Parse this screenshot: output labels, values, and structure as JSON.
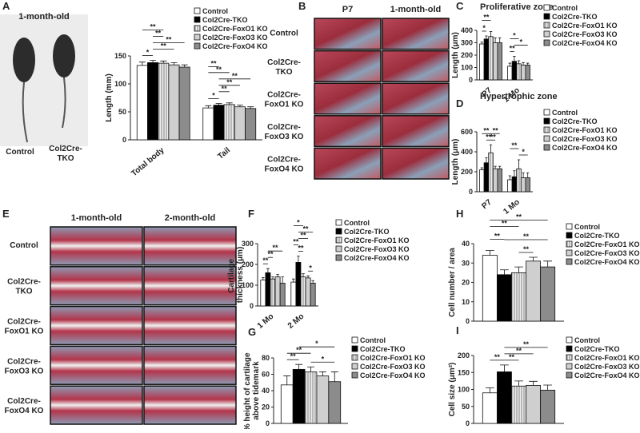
{
  "figure": {
    "photo": {
      "panel": "A",
      "caption": "1-month-old",
      "labels": [
        "Control",
        "Col2Cre-TKO"
      ]
    },
    "histology_b": {
      "panel": "B",
      "columns": [
        "P7",
        "1-month-old"
      ],
      "rows": [
        "Control",
        "Col2Cre-TKO",
        "Col2Cre-FoxO1 KO",
        "Col2Cre-FoxO3 KO",
        "Col2Cre-FoxO4 KO"
      ]
    },
    "histology_e": {
      "panel": "E",
      "columns": [
        "1-month-old",
        "2-month-old"
      ],
      "rows": [
        "Control",
        "Col2Cre-TKO",
        "Col2Cre-FoxO1 KO",
        "Col2Cre-FoxO3 KO",
        "Col2Cre-FoxO4 KO"
      ]
    }
  },
  "chart_data": [
    {
      "type": "bar",
      "y_label": "Length (mm)",
      "categories": [
        "Total body",
        "Tail"
      ],
      "ylim": [
        0,
        150
      ],
      "yticks": [
        0,
        50,
        100,
        150
      ],
      "series": [
        {
          "name": "Control",
          "color": "#ffffff",
          "values": [
            133,
            57
          ],
          "errors": [
            6,
            4
          ]
        },
        {
          "name": "Col2Cre-TKO",
          "color": "#000000",
          "values": [
            138,
            62
          ],
          "errors": [
            4,
            3
          ]
        },
        {
          "name": "Col2Cre-FoxO1 KO",
          "color": "#e6e6e6",
          "hatch": true,
          "values": [
            137,
            63
          ],
          "errors": [
            4,
            3
          ]
        },
        {
          "name": "Col2Cre-FoxO3 KO",
          "color": "#cfcfcf",
          "values": [
            134,
            59
          ],
          "errors": [
            4,
            3
          ]
        },
        {
          "name": "Col2Cre-FoxO4 KO",
          "color": "#8c8c8c",
          "values": [
            130,
            56
          ],
          "errors": [
            4,
            3
          ]
        }
      ],
      "annotations": [
        "*",
        "**",
        "**",
        "**",
        "**",
        "*",
        "**",
        "**",
        "**",
        "**",
        "**"
      ]
    },
    {
      "type": "bar",
      "panel": "C",
      "title": "Proliferative zone",
      "y_label": "Length (μm)",
      "categories": [
        "P7",
        "1 Mo"
      ],
      "ylim": [
        0,
        400
      ],
      "yticks": [
        0,
        100,
        200,
        300,
        400
      ],
      "series": [
        {
          "name": "Control",
          "color": "#ffffff",
          "values": [
            290,
            110
          ],
          "errors": [
            15,
            25
          ]
        },
        {
          "name": "Col2Cre-TKO",
          "color": "#000000",
          "values": [
            330,
            150
          ],
          "errors": [
            25,
            40
          ]
        },
        {
          "name": "Col2Cre-FoxO1 KO",
          "color": "#e6e6e6",
          "hatch": true,
          "values": [
            350,
            130
          ],
          "errors": [
            40,
            25
          ]
        },
        {
          "name": "Col2Cre-FoxO3 KO",
          "color": "#cfcfcf",
          "values": [
            300,
            120
          ],
          "errors": [
            40,
            20
          ]
        },
        {
          "name": "Col2Cre-FoxO4 KO",
          "color": "#8c8c8c",
          "values": [
            300,
            120
          ],
          "errors": [
            40,
            15
          ]
        }
      ],
      "annotations": [
        "**",
        "*",
        "*",
        "**",
        "*"
      ]
    },
    {
      "type": "bar",
      "panel": "D",
      "title": "Hypertrophic zone",
      "y_label": "Length (μm)",
      "categories": [
        "P7",
        "1 Mo"
      ],
      "ylim": [
        0,
        600
      ],
      "yticks": [
        0,
        200,
        400,
        600
      ],
      "series": [
        {
          "name": "Control",
          "color": "#ffffff",
          "values": [
            220,
            120
          ],
          "errors": [
            20,
            40
          ]
        },
        {
          "name": "Col2Cre-TKO",
          "color": "#000000",
          "values": [
            290,
            150
          ],
          "errors": [
            50,
            60
          ]
        },
        {
          "name": "Col2Cre-FoxO1 KO",
          "color": "#e6e6e6",
          "hatch": true,
          "values": [
            390,
            230
          ],
          "errors": [
            80,
            90
          ]
        },
        {
          "name": "Col2Cre-FoxO3 KO",
          "color": "#cfcfcf",
          "values": [
            230,
            140
          ],
          "errors": [
            25,
            50
          ]
        },
        {
          "name": "Col2Cre-FoxO4 KO",
          "color": "#8c8c8c",
          "values": [
            230,
            140
          ],
          "errors": [
            25,
            50
          ]
        }
      ],
      "annotations": [
        "**",
        "**",
        "**",
        "**",
        "**",
        "*"
      ]
    },
    {
      "type": "bar",
      "panel": "F",
      "y_label": "Cartilage thickness (μm)",
      "categories": [
        "1 Mo",
        "2 Mo"
      ],
      "ylim": [
        0,
        300
      ],
      "yticks": [
        0,
        100,
        200,
        300
      ],
      "series": [
        {
          "name": "Control",
          "color": "#ffffff",
          "values": [
            125,
            115
          ],
          "errors": [
            12,
            15
          ]
        },
        {
          "name": "Col2Cre-TKO",
          "color": "#000000",
          "values": [
            160,
            210
          ],
          "errors": [
            20,
            30
          ]
        },
        {
          "name": "Col2Cre-FoxO1 KO",
          "color": "#e6e6e6",
          "hatch": true,
          "values": [
            130,
            140
          ],
          "errors": [
            10,
            15
          ]
        },
        {
          "name": "Col2Cre-FoxO3 KO",
          "color": "#cfcfcf",
          "values": [
            140,
            135
          ],
          "errors": [
            12,
            10
          ]
        },
        {
          "name": "Col2Cre-FoxO4 KO",
          "color": "#8c8c8c",
          "values": [
            110,
            110
          ],
          "errors": [
            30,
            12
          ]
        }
      ],
      "annotations": [
        "**",
        "**",
        "**",
        "**",
        "*",
        "**",
        "**",
        "**",
        "*"
      ]
    },
    {
      "type": "bar",
      "panel": "G",
      "y_label": "% height of cartilage above tidemark",
      "categories": [
        null
      ],
      "ylim": [
        0,
        80
      ],
      "yticks": [
        0,
        20,
        40,
        60,
        80
      ],
      "series": [
        {
          "name": "Control",
          "color": "#ffffff",
          "values": [
            47
          ],
          "errors": [
            11
          ]
        },
        {
          "name": "Col2Cre-TKO",
          "color": "#000000",
          "values": [
            66
          ],
          "errors": [
            6
          ]
        },
        {
          "name": "Col2Cre-FoxO1 KO",
          "color": "#e6e6e6",
          "hatch": true,
          "values": [
            63
          ],
          "errors": [
            6
          ]
        },
        {
          "name": "Col2Cre-FoxO3 KO",
          "color": "#cfcfcf",
          "values": [
            58
          ],
          "errors": [
            5
          ]
        },
        {
          "name": "Col2Cre-FoxO4 KO",
          "color": "#8c8c8c",
          "values": [
            51
          ],
          "errors": [
            12
          ]
        }
      ],
      "annotations": [
        "*",
        "**",
        "**",
        "*"
      ]
    },
    {
      "type": "bar",
      "panel": "H",
      "y_label": "Cell number / area",
      "categories": [
        null
      ],
      "ylim": [
        0,
        40
      ],
      "yticks": [
        0,
        10,
        20,
        30,
        40
      ],
      "series": [
        {
          "name": "Control",
          "color": "#ffffff",
          "values": [
            34
          ],
          "errors": [
            2.5
          ]
        },
        {
          "name": "Col2Cre-TKO",
          "color": "#000000",
          "values": [
            24
          ],
          "errors": [
            2.5
          ]
        },
        {
          "name": "Col2Cre-FoxO1 KO",
          "color": "#e6e6e6",
          "hatch": true,
          "values": [
            25
          ],
          "errors": [
            3
          ]
        },
        {
          "name": "Col2Cre-FoxO3 KO",
          "color": "#cfcfcf",
          "values": [
            31
          ],
          "errors": [
            2
          ]
        },
        {
          "name": "Col2Cre-FoxO4 KO",
          "color": "#8c8c8c",
          "values": [
            28
          ],
          "errors": [
            3
          ]
        }
      ],
      "annotations": [
        "**",
        "**",
        "**",
        "**",
        "**"
      ]
    },
    {
      "type": "bar",
      "panel": "I",
      "y_label": "Cell size (μm²)",
      "categories": [
        null
      ],
      "ylim": [
        0,
        200
      ],
      "yticks": [
        0,
        50,
        100,
        150,
        200
      ],
      "series": [
        {
          "name": "Control",
          "color": "#ffffff",
          "values": [
            90
          ],
          "errors": [
            15
          ]
        },
        {
          "name": "Col2Cre-TKO",
          "color": "#000000",
          "values": [
            152
          ],
          "errors": [
            20
          ]
        },
        {
          "name": "Col2Cre-FoxO1 KO",
          "color": "#e6e6e6",
          "hatch": true,
          "values": [
            110
          ],
          "errors": [
            15
          ]
        },
        {
          "name": "Col2Cre-FoxO3 KO",
          "color": "#cfcfcf",
          "values": [
            112
          ],
          "errors": [
            12
          ]
        },
        {
          "name": "Col2Cre-FoxO4 KO",
          "color": "#8c8c8c",
          "values": [
            98
          ],
          "errors": [
            15
          ]
        }
      ],
      "annotations": [
        "**",
        "**",
        "**",
        "**"
      ]
    }
  ]
}
